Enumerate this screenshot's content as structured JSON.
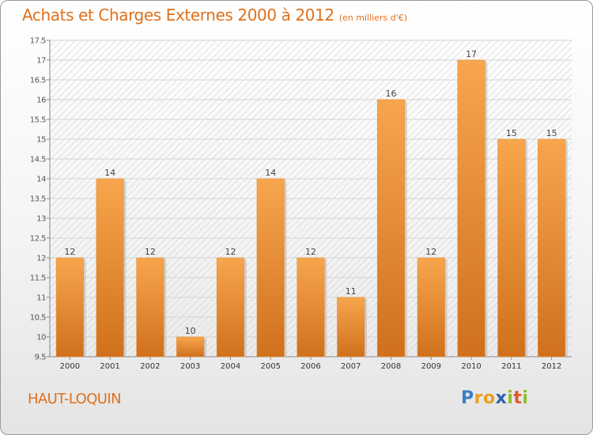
{
  "title": "Achats et Charges Externes 2000 à 2012",
  "title_unit": "(en milliers d'€)",
  "place": "HAUT-LOQUIN",
  "logo": {
    "text": "Proxiti",
    "letters": [
      {
        "ch": "P",
        "color": "#3a7fc4"
      },
      {
        "ch": "r",
        "color": "#e8a020"
      },
      {
        "ch": "o",
        "color": "#e8a020"
      },
      {
        "ch": "x",
        "color": "#2a63b0"
      },
      {
        "ch": "i",
        "color": "#8cbd2c"
      },
      {
        "ch": "t",
        "color": "#e05a2a"
      },
      {
        "ch": "i",
        "color": "#8cbd2c"
      }
    ]
  },
  "colors": {
    "bar_top": "#f7a64e",
    "bar_bottom": "#d0701c",
    "accent": "#e0701a"
  },
  "chart_data": {
    "type": "bar",
    "title": "Achats et Charges Externes 2000 à 2012",
    "categories": [
      "2000",
      "2001",
      "2002",
      "2003",
      "2004",
      "2005",
      "2006",
      "2007",
      "2008",
      "2009",
      "2010",
      "2011",
      "2012"
    ],
    "values": [
      12,
      14,
      12,
      10,
      12,
      14,
      12,
      11,
      16,
      12,
      17,
      15,
      15
    ],
    "value_labels": [
      "12",
      "14",
      "12",
      "10",
      "12",
      "14",
      "12",
      "11",
      "16",
      "12",
      "17",
      "15",
      "15"
    ],
    "ylim": [
      9.5,
      17.5
    ],
    "yticks": [
      9.5,
      10,
      10.5,
      11,
      11.5,
      12,
      12.5,
      13,
      13.5,
      14,
      14.5,
      15,
      15.5,
      16,
      16.5,
      17,
      17.5
    ],
    "ytick_labels": [
      "9.5",
      "10",
      "10.5",
      "11",
      "11.5",
      "12",
      "12.5",
      "13",
      "13.5",
      "14",
      "14.5",
      "15",
      "15.5",
      "16",
      "16.5",
      "17",
      "17.5"
    ],
    "grid": true
  }
}
